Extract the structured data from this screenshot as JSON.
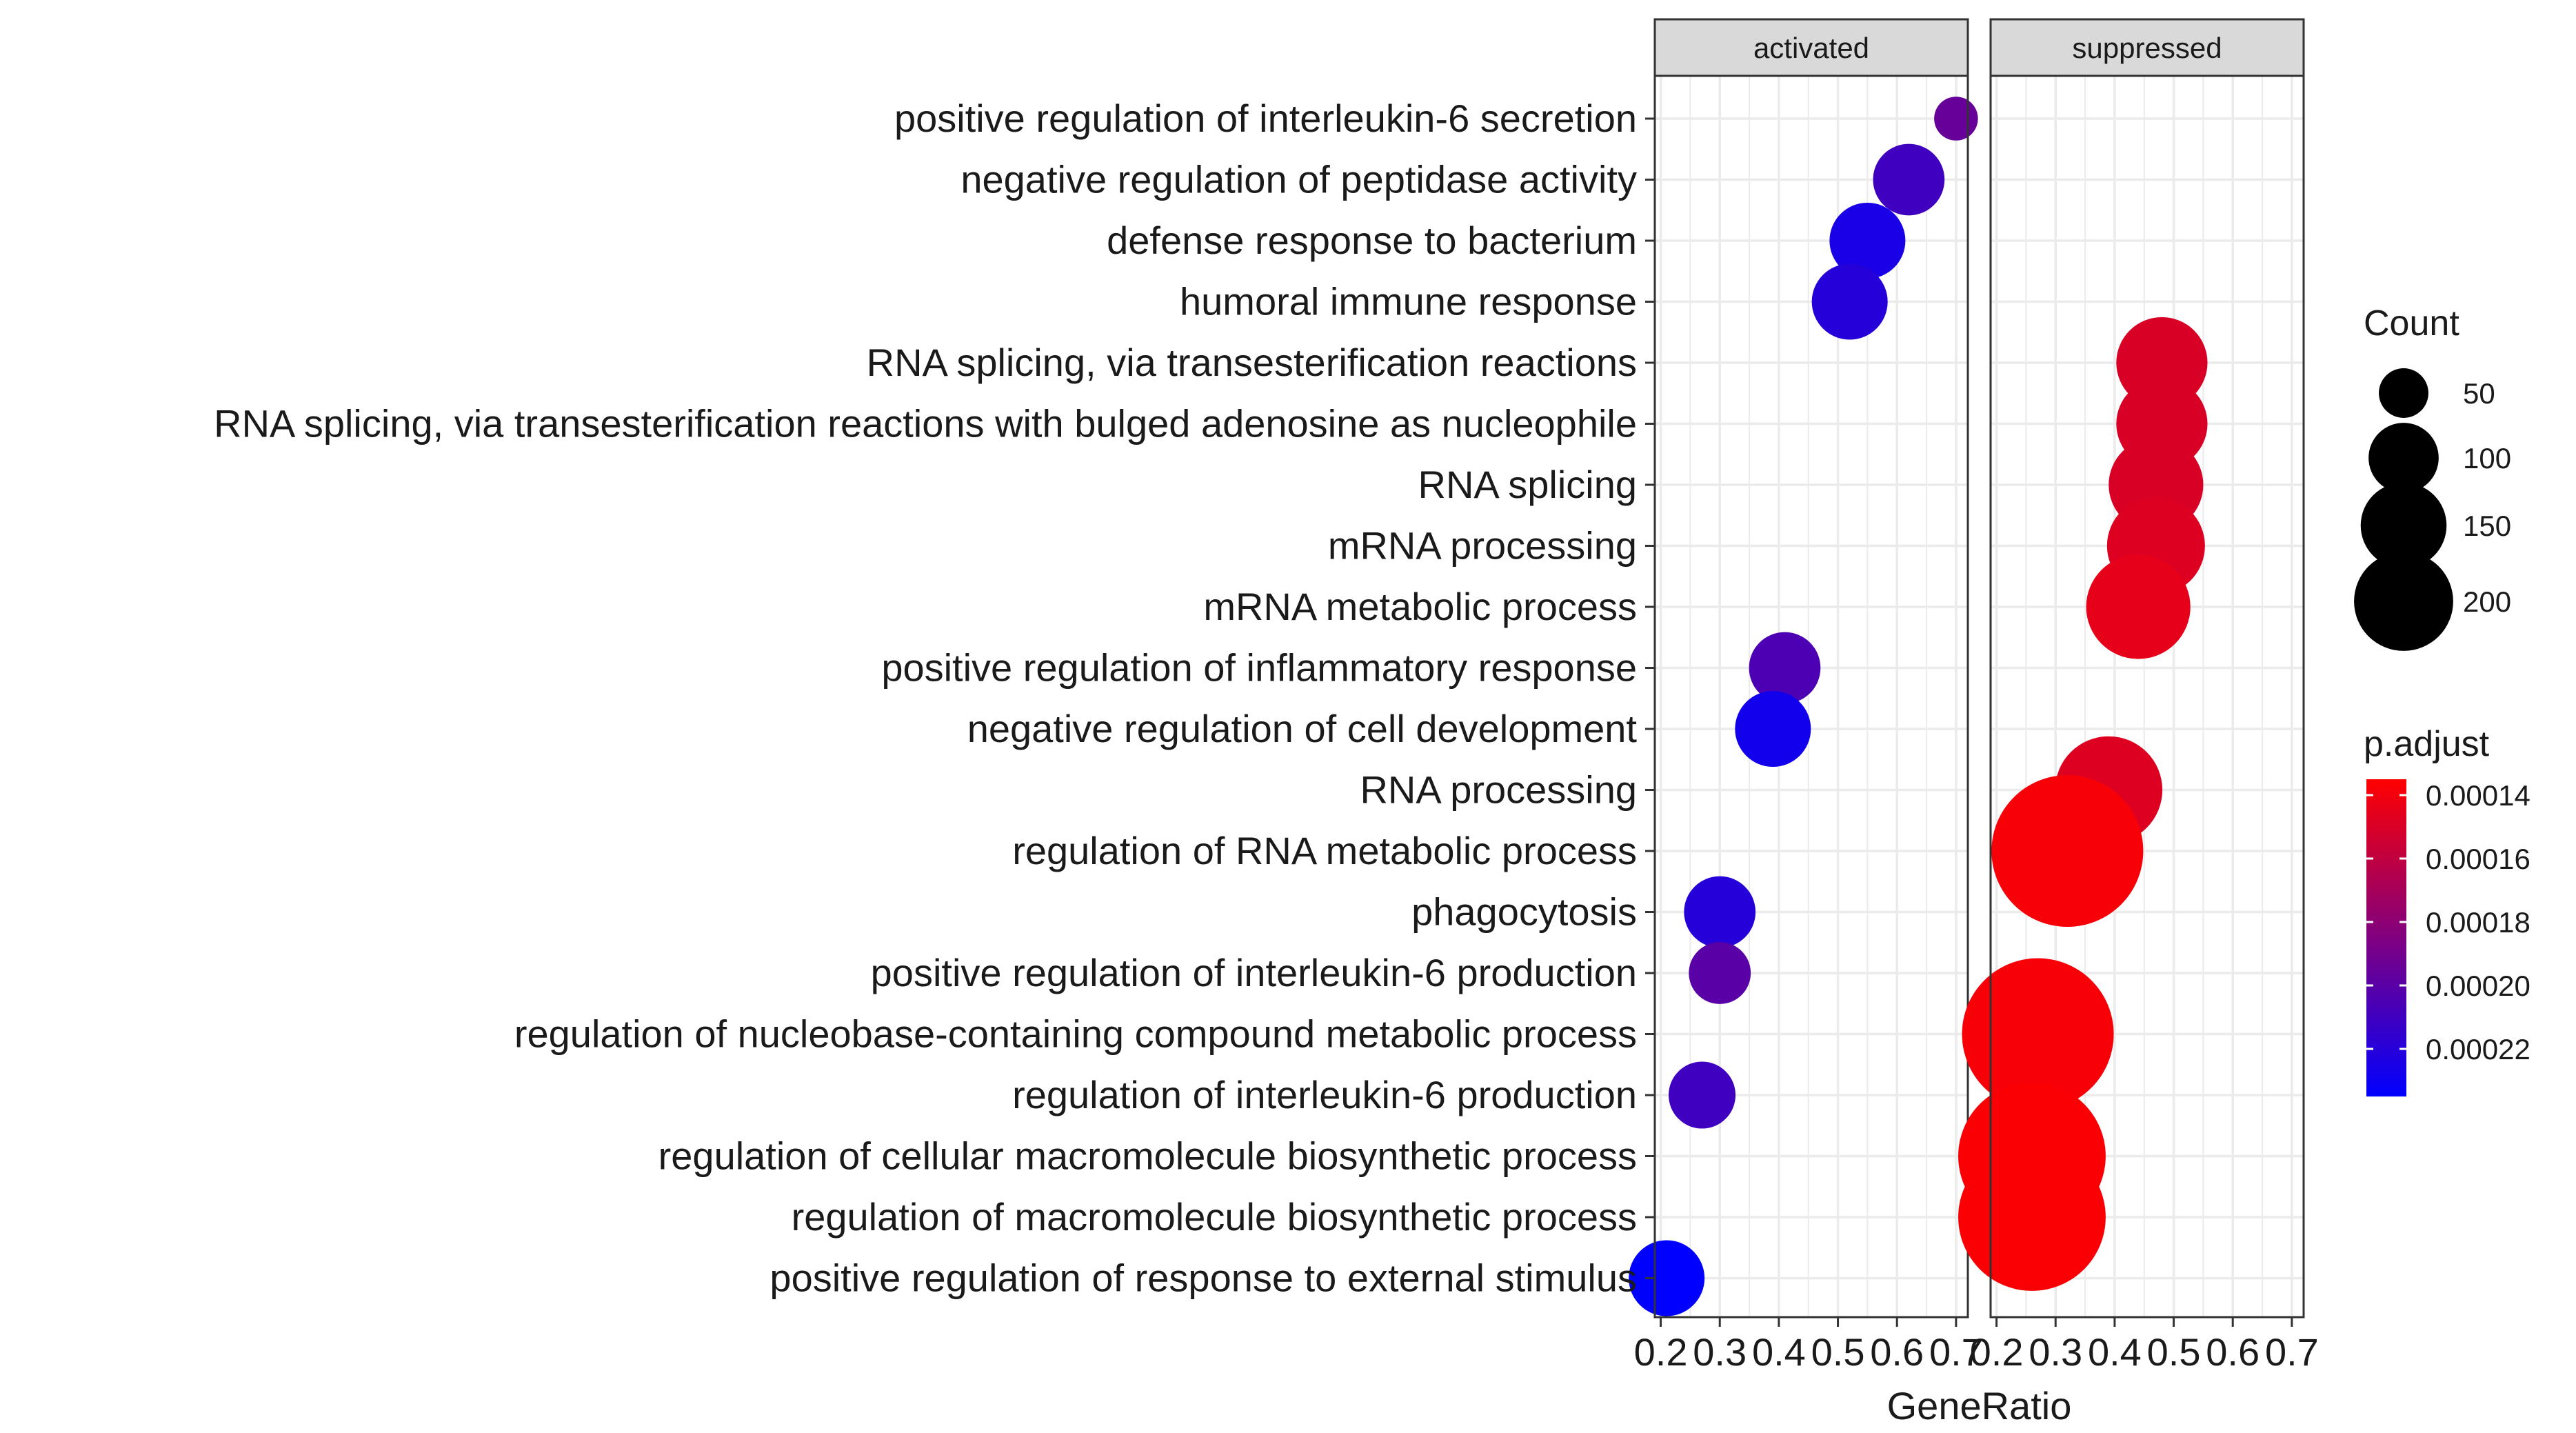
{
  "chart_data": {
    "type": "scatter",
    "xlabel": "GeneRatio",
    "xlim": [
      0.19,
      0.72
    ],
    "xticks": [
      0.2,
      0.3,
      0.4,
      0.5,
      0.6,
      0.7
    ],
    "xtick_labels": [
      "0.2",
      "0.3",
      "0.4",
      "0.5",
      "0.6",
      "0.7"
    ],
    "grid": true,
    "facets": [
      "activated",
      "suppressed"
    ],
    "terms": [
      "positive regulation of interleukin-6 secretion",
      "negative regulation of peptidase activity",
      "defense response to bacterium",
      "humoral immune response",
      "RNA splicing, via transesterification reactions",
      "RNA splicing, via transesterification reactions with bulged adenosine as nucleophile",
      "RNA splicing",
      "mRNA processing",
      "mRNA metabolic process",
      "positive regulation of inflammatory response",
      "negative regulation of cell development",
      "RNA processing",
      "regulation of RNA metabolic process",
      "phagocytosis",
      "positive regulation of interleukin-6 production",
      "regulation of nucleobase-containing compound metabolic process",
      "regulation of interleukin-6 production",
      "regulation of cellular macromolecule biosynthetic process",
      "regulation of macromolecule biosynthetic process",
      "positive regulation of response to external stimulus"
    ],
    "points": [
      {
        "term": "positive regulation of interleukin-6 secretion",
        "facet": "activated",
        "x": 0.7,
        "count": 15,
        "p_adjust": 0.000195
      },
      {
        "term": "negative regulation of peptidase activity",
        "facet": "activated",
        "x": 0.62,
        "count": 40,
        "p_adjust": 0.00021
      },
      {
        "term": "defense response to bacterium",
        "facet": "activated",
        "x": 0.55,
        "count": 45,
        "p_adjust": 0.000225
      },
      {
        "term": "humoral immune response",
        "facet": "activated",
        "x": 0.52,
        "count": 45,
        "p_adjust": 0.00022
      },
      {
        "term": "RNA splicing, via transesterification reactions",
        "facet": "suppressed",
        "x": 0.48,
        "count": 65,
        "p_adjust": 0.00015
      },
      {
        "term": "RNA splicing, via transesterification reactions with bulged adenosine as nucleophile",
        "facet": "suppressed",
        "x": 0.48,
        "count": 65,
        "p_adjust": 0.00015
      },
      {
        "term": "RNA splicing",
        "facet": "suppressed",
        "x": 0.47,
        "count": 70,
        "p_adjust": 0.00015
      },
      {
        "term": "mRNA processing",
        "facet": "suppressed",
        "x": 0.47,
        "count": 75,
        "p_adjust": 0.000148
      },
      {
        "term": "mRNA metabolic process",
        "facet": "suppressed",
        "x": 0.44,
        "count": 85,
        "p_adjust": 0.000145
      },
      {
        "term": "positive regulation of inflammatory response",
        "facet": "activated",
        "x": 0.41,
        "count": 40,
        "p_adjust": 0.000205
      },
      {
        "term": "negative regulation of cell development",
        "facet": "activated",
        "x": 0.39,
        "count": 45,
        "p_adjust": 0.000228
      },
      {
        "term": "RNA processing",
        "facet": "suppressed",
        "x": 0.39,
        "count": 90,
        "p_adjust": 0.000148
      },
      {
        "term": "regulation of RNA metabolic process",
        "facet": "suppressed",
        "x": 0.32,
        "count": 180,
        "p_adjust": 0.000138
      },
      {
        "term": "phagocytosis",
        "facet": "activated",
        "x": 0.3,
        "count": 40,
        "p_adjust": 0.00022
      },
      {
        "term": "positive regulation of interleukin-6 production",
        "facet": "activated",
        "x": 0.3,
        "count": 30,
        "p_adjust": 0.0002
      },
      {
        "term": "regulation of nucleobase-containing compound metabolic process",
        "facet": "suppressed",
        "x": 0.27,
        "count": 180,
        "p_adjust": 0.000138
      },
      {
        "term": "regulation of interleukin-6 production",
        "facet": "activated",
        "x": 0.27,
        "count": 35,
        "p_adjust": 0.00021
      },
      {
        "term": "regulation of cellular macromolecule biosynthetic process",
        "facet": "suppressed",
        "x": 0.26,
        "count": 170,
        "p_adjust": 0.000137
      },
      {
        "term": "regulation of macromolecule biosynthetic process",
        "facet": "suppressed",
        "x": 0.26,
        "count": 170,
        "p_adjust": 0.000137
      },
      {
        "term": "positive regulation of response to external stimulus",
        "facet": "activated",
        "x": 0.21,
        "count": 45,
        "p_adjust": 0.000235
      }
    ],
    "legend_count": {
      "title": "Count",
      "values": [
        50,
        100,
        150,
        200
      ],
      "labels": [
        "50",
        "100",
        "150",
        "200"
      ]
    },
    "legend_color": {
      "title": "p.adjust",
      "range": [
        0.000135,
        0.000235
      ],
      "ticks": [
        0.00014,
        0.00016,
        0.00018,
        0.0002,
        0.00022
      ],
      "labels": [
        "0.00014",
        "0.00016",
        "0.00018",
        "0.00020",
        "0.00022"
      ],
      "colors": [
        "#ff0000",
        "#0000ff"
      ]
    },
    "colors": {
      "strip_fill": "#d9d9d9",
      "panel_border": "#333333",
      "grid": "#ebebeb",
      "point_outline": "none"
    }
  }
}
